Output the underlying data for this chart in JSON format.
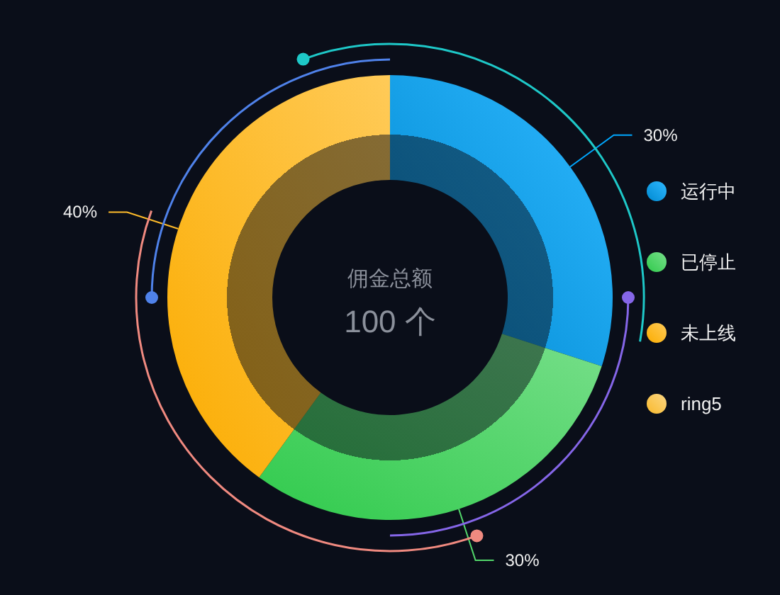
{
  "chart_data": {
    "type": "donut",
    "title": "佣金总额",
    "annotations": [
      "100 个"
    ],
    "categories": [
      "运行中",
      "已停止",
      "未上线",
      "ring5"
    ],
    "values": [
      30,
      30,
      40,
      null
    ],
    "colors": [
      "#00a8ff",
      "#52d66a",
      "#ffbc2a",
      "#fac858"
    ],
    "value_labels": [
      "30%",
      "30%",
      "40%",
      null
    ],
    "legend": "right"
  }
}
